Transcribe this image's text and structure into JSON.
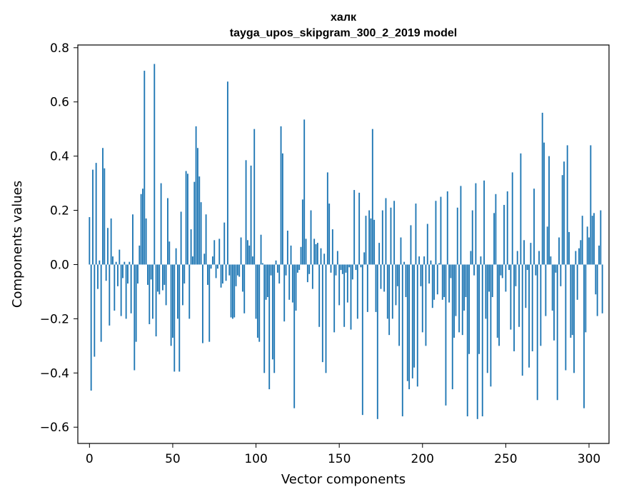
{
  "chart_data": {
    "type": "bar",
    "title": "халк",
    "subtitle": "tayga_upos_skipgram_300_2_2019 model",
    "xlabel": "Vector components",
    "ylabel": "Components values",
    "xlim": [
      -7,
      312
    ],
    "ylim": [
      -0.66,
      0.81
    ],
    "xticks": [
      0,
      50,
      100,
      150,
      200,
      250,
      300
    ],
    "yticks": [
      -0.6,
      -0.4,
      -0.2,
      0.0,
      0.2,
      0.4,
      0.6,
      0.8
    ],
    "ytick_labels": [
      "−0.6",
      "−0.4",
      "−0.2",
      "0.0",
      "0.2",
      "0.4",
      "0.6",
      "0.8"
    ],
    "bar_color": "#1f77b4",
    "values": [
      0.175,
      -0.465,
      0.35,
      -0.34,
      0.375,
      -0.09,
      0.015,
      -0.285,
      0.43,
      0.355,
      -0.06,
      0.135,
      -0.225,
      0.17,
      0.03,
      -0.17,
      0.01,
      -0.08,
      0.055,
      -0.19,
      -0.05,
      0.01,
      -0.2,
      -0.07,
      0.01,
      -0.18,
      0.185,
      -0.39,
      -0.285,
      -0.07,
      0.07,
      0.26,
      0.28,
      0.715,
      0.17,
      -0.075,
      -0.22,
      -0.055,
      -0.2,
      0.74,
      -0.265,
      -0.1,
      -0.11,
      0.3,
      -0.095,
      -0.075,
      -0.15,
      0.245,
      0.085,
      -0.3,
      -0.27,
      -0.395,
      0.06,
      -0.2,
      -0.395,
      0.195,
      -0.15,
      -0.07,
      0.345,
      0.335,
      -0.2,
      0.13,
      0.03,
      0.305,
      0.51,
      0.43,
      0.325,
      0.23,
      -0.29,
      0.04,
      0.185,
      -0.075,
      -0.285,
      -0.015,
      0.03,
      0.09,
      -0.05,
      -0.015,
      0.095,
      -0.085,
      -0.07,
      0.155,
      -0.06,
      0.675,
      -0.04,
      -0.195,
      -0.2,
      -0.195,
      -0.08,
      -0.04,
      -0.045,
      0.1,
      -0.1,
      -0.18,
      0.385,
      0.09,
      0.07,
      0.365,
      0.03,
      0.5,
      -0.2,
      -0.27,
      -0.285,
      0.11,
      0.005,
      -0.4,
      -0.13,
      -0.12,
      -0.46,
      -0.04,
      -0.35,
      -0.4,
      0.015,
      -0.03,
      -0.07,
      0.51,
      0.41,
      -0.21,
      -0.04,
      0.125,
      -0.13,
      0.07,
      -0.14,
      -0.53,
      -0.17,
      -0.03,
      -0.02,
      0.065,
      0.24,
      0.535,
      0.095,
      -0.065,
      -0.035,
      0.2,
      -0.09,
      0.095,
      0.075,
      0.08,
      -0.23,
      0.06,
      -0.36,
      0.04,
      -0.4,
      0.34,
      0.225,
      -0.03,
      0.13,
      -0.25,
      -0.04,
      0.05,
      -0.15,
      -0.02,
      -0.035,
      -0.23,
      -0.03,
      -0.14,
      -0.01,
      -0.24,
      -0.055,
      0.275,
      -0.02,
      -0.2,
      0.265,
      -0.01,
      -0.555,
      0.045,
      0.18,
      -0.175,
      0.2,
      0.17,
      0.5,
      0.165,
      -0.175,
      -0.57,
      0.08,
      -0.09,
      0.2,
      -0.1,
      0.245,
      -0.2,
      -0.26,
      0.21,
      -0.2,
      0.235,
      -0.15,
      -0.08,
      -0.3,
      0.1,
      -0.56,
      0.01,
      -0.12,
      -0.43,
      -0.46,
      0.145,
      -0.42,
      -0.38,
      0.225,
      -0.45,
      0.03,
      -0.08,
      -0.25,
      0.03,
      -0.3,
      0.15,
      -0.07,
      0.015,
      -0.16,
      -0.13,
      0.235,
      -0.11,
      0.005,
      0.25,
      -0.13,
      -0.12,
      -0.52,
      0.27,
      -0.14,
      -0.05,
      -0.46,
      -0.27,
      -0.19,
      0.21,
      -0.25,
      0.29,
      -0.26,
      -0.17,
      -0.12,
      -0.56,
      -0.33,
      0.05,
      0.2,
      -0.04,
      0.3,
      -0.57,
      -0.33,
      0.03,
      -0.56,
      0.31,
      -0.2,
      -0.4,
      -0.1,
      -0.45,
      -0.12,
      0.19,
      0.26,
      -0.27,
      -0.3,
      -0.04,
      -0.05,
      0.22,
      -0.1,
      0.27,
      -0.02,
      -0.24,
      0.34,
      -0.32,
      -0.08,
      0.05,
      -0.23,
      0.41,
      -0.41,
      0.09,
      -0.16,
      -0.02,
      -0.38,
      0.08,
      -0.32,
      0.28,
      -0.04,
      -0.5,
      0.05,
      -0.3,
      0.56,
      0.45,
      -0.19,
      0.14,
      0.4,
      0.03,
      -0.17,
      -0.28,
      -0.03,
      -0.5,
      0.1,
      -0.08,
      0.33,
      0.38,
      -0.39,
      0.44,
      0.12,
      -0.27,
      -0.26,
      -0.4,
      0.05,
      -0.13,
      0.06,
      0.09,
      0.18,
      -0.53,
      -0.25,
      0.14,
      0.1,
      0.44,
      0.18,
      0.19,
      -0.11,
      -0.19,
      0.07,
      0.2,
      -0.18
    ]
  }
}
